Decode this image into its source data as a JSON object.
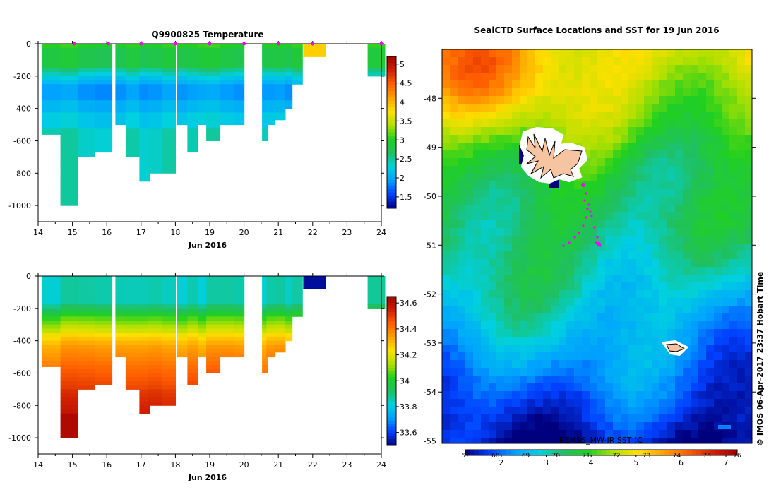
{
  "panel_temp": {
    "title": "Q9900825  Temperature",
    "xlabel": "Jun 2016",
    "colorbar_ticks": [
      "1.5",
      "2",
      "2.5",
      "3",
      "3.5",
      "4",
      "4.5",
      "5"
    ],
    "colors": [
      "#00007f",
      "#0040ff",
      "#00a0ff",
      "#00d0e0",
      "#20c060",
      "#20d020",
      "#b0e000",
      "#ffe000",
      "#ffa000",
      "#ff6000",
      "#d02000",
      "#a00000"
    ]
  },
  "panel_sal": {
    "xlabel": "Jun 2016",
    "colorbar_ticks": [
      "33.6",
      "33.8",
      "34",
      "34.2",
      "34.4",
      "34.6"
    ]
  },
  "panel_map": {
    "title": "SealCTD Surface Locations and SST for 19 Jun 2016",
    "colorbar_label_top": "REMSS_MW-IR SST (C",
    "colorbar_ticks_bottom": [
      "2",
      "3",
      "4",
      "5",
      "6",
      "7"
    ],
    "colorbar_ticks_top": [
      "67",
      "68",
      "69",
      "70",
      "71",
      "72",
      "73",
      "74",
      "75",
      "76"
    ],
    "copyright": "© IMOS 06-Apr-2017 23:37 Hobart Time",
    "land_color": "#f6c4a0",
    "track_color": "#ff00ff"
  },
  "chart_data": [
    {
      "type": "heatmap",
      "title": "Q9900825  Temperature",
      "xlabel": "Jun 2016",
      "x_ticks": [
        14,
        15,
        16,
        17,
        18,
        19,
        20,
        21,
        22,
        23,
        24
      ],
      "y_ticks": [
        0,
        -200,
        -400,
        -600,
        -800,
        -1000
      ],
      "xlim": [
        14,
        24
      ],
      "ylim": [
        -1100,
        0
      ],
      "colorbar_range": [
        1.2,
        5.2
      ],
      "profiles": [
        {
          "t": 14.4,
          "w": 0.6,
          "depth": 560
        },
        {
          "t": 14.9,
          "w": 0.5,
          "depth": 1000
        },
        {
          "t": 15.4,
          "w": 0.5,
          "depth": 700
        },
        {
          "t": 15.9,
          "w": 0.5,
          "depth": 670
        },
        {
          "t": 16.4,
          "w": 0.3,
          "depth": 500
        },
        {
          "t": 16.75,
          "w": 0.4,
          "depth": 700
        },
        {
          "t": 17.1,
          "w": 0.3,
          "depth": 850
        },
        {
          "t": 17.4,
          "w": 0.4,
          "depth": 800
        },
        {
          "t": 17.8,
          "w": 0.4,
          "depth": 800
        },
        {
          "t": 18.2,
          "w": 0.3,
          "depth": 500
        },
        {
          "t": 18.5,
          "w": 0.3,
          "depth": 670
        },
        {
          "t": 18.8,
          "w": 0.3,
          "depth": 500
        },
        {
          "t": 19.1,
          "w": 0.4,
          "depth": 600
        },
        {
          "t": 19.5,
          "w": 0.4,
          "depth": 500
        },
        {
          "t": 19.85,
          "w": 0.3,
          "depth": 500
        },
        {
          "t": 20.6,
          "w": 0.15,
          "depth": 600
        },
        {
          "t": 20.78,
          "w": 0.25,
          "depth": 500
        },
        {
          "t": 21.05,
          "w": 0.3,
          "depth": 470
        },
        {
          "t": 21.3,
          "w": 0.2,
          "depth": 400
        },
        {
          "t": 21.55,
          "w": 0.3,
          "depth": 250
        },
        {
          "t": 22.05,
          "w": 0.65,
          "depth": 80
        },
        {
          "t": 23.85,
          "w": 0.5,
          "depth": 200
        }
      ],
      "markers": [
        15.05,
        16.05,
        17.0,
        18.0,
        19.0,
        20.0,
        21.0,
        22.0,
        24.0
      ]
    },
    {
      "type": "heatmap",
      "xlabel": "Jun 2016",
      "x_ticks": [
        14,
        15,
        16,
        17,
        18,
        19,
        20,
        21,
        22,
        23,
        24
      ],
      "y_ticks": [
        0,
        -200,
        -400,
        -600,
        -800,
        -1000
      ],
      "xlim": [
        14,
        24
      ],
      "ylim": [
        -1100,
        0
      ],
      "colorbar_range": [
        33.5,
        34.65
      ]
    },
    {
      "type": "heatmap",
      "title": "SealCTD Surface Locations and SST for 19 Jun 2016",
      "y_ticks": [
        -48,
        -49,
        -50,
        -51,
        -52,
        -53,
        -54,
        -55
      ],
      "ylim": [
        -55.05,
        -47.0
      ],
      "colorbar_ticks": [
        2,
        3,
        4,
        5,
        6,
        7
      ],
      "colorbar_ticks_f": [
        67,
        68,
        69,
        70,
        71,
        72,
        73,
        74,
        75,
        76
      ]
    }
  ]
}
